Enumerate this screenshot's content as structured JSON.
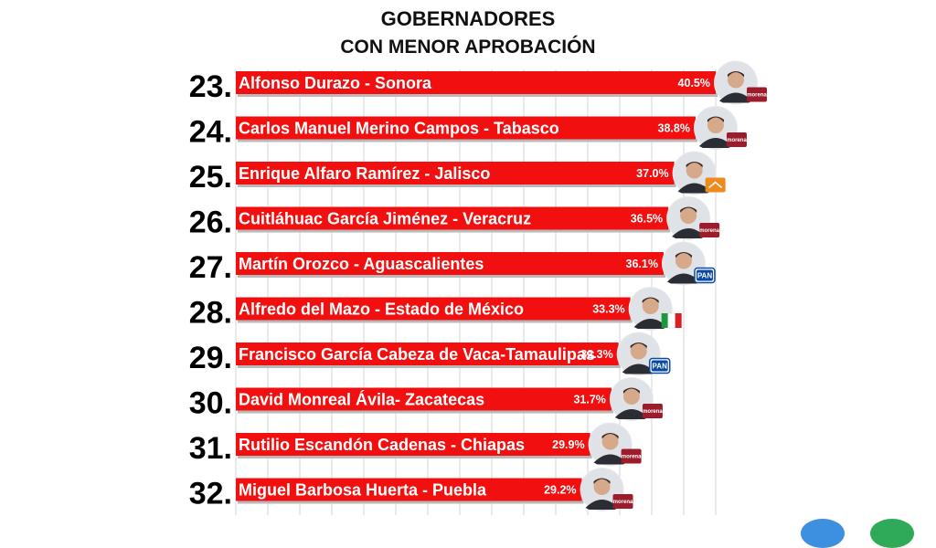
{
  "title": "GOBERNADORES",
  "subtitle": "CON MENOR APROBACIÓN",
  "colors": {
    "bar": "#f20f0f",
    "bar_shadow": "#b9b9b9",
    "grid": "#d6d6d6",
    "morena": "#9c1c2b",
    "pan": "#0b4aa2",
    "pri_green": "#1a9a3a",
    "pri_red": "#d91e25",
    "mc_orange": "#f08a1c"
  },
  "chart_data": {
    "type": "bar",
    "orientation": "horizontal",
    "categories": [
      "Alfonso Durazo - Sonora",
      "Carlos Manuel Merino Campos - Tabasco",
      "Enrique Alfaro Ramírez - Jalisco",
      "Cuitláhuac García Jiménez - Veracruz",
      "Martín Orozco - Aguascalientes",
      "Alfredo del Mazo - Estado de México",
      "Francisco García Cabeza de Vaca-Tamaulipas",
      "David Monreal Ávila- Zacatecas",
      "Rutilio Escandón Cadenas - Chiapas",
      "Miguel Barbosa Huerta - Puebla"
    ],
    "ranks": [
      "23.",
      "24.",
      "25.",
      "26.",
      "27.",
      "28.",
      "29.",
      "30.",
      "31.",
      "32."
    ],
    "values": [
      40.5,
      38.8,
      37.0,
      36.5,
      36.1,
      33.3,
      32.3,
      31.7,
      29.9,
      29.2
    ],
    "value_labels": [
      "40.5%",
      "38.8%",
      "37.0%",
      "36.5%",
      "36.1%",
      "33.3%",
      "32.3%",
      "31.7%",
      "29.9%",
      "29.2%"
    ],
    "parties": [
      "morena",
      "morena",
      "mc",
      "morena",
      "pan",
      "pri",
      "pan",
      "morena",
      "morena",
      "morena"
    ],
    "party_labels": {
      "morena": "morena",
      "pan": "PAN",
      "pri": "PRI",
      "mc": ""
    },
    "xlim": [
      0,
      40.5
    ],
    "grid": true,
    "legend": "none"
  }
}
